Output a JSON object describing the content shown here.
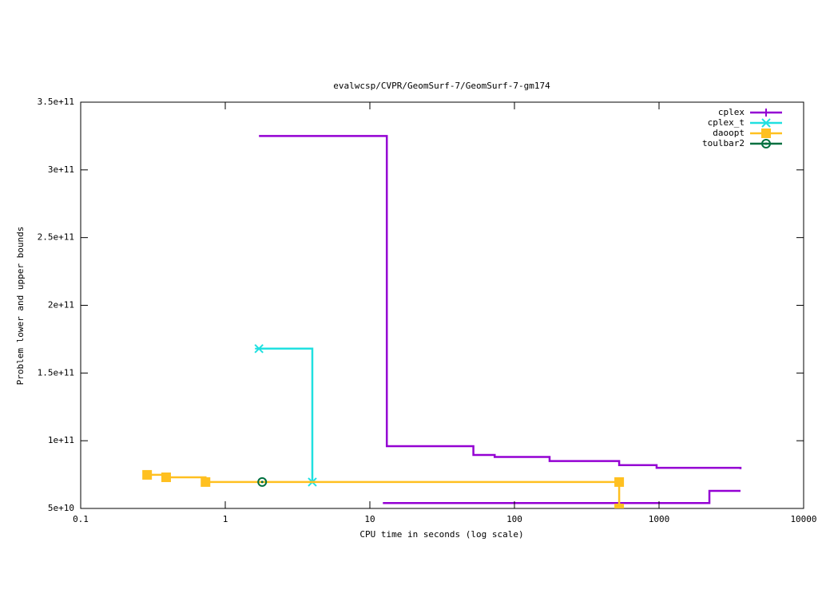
{
  "chart_data": {
    "type": "step",
    "title": "evalwcsp/CVPR/GeomSurf-7/GeomSurf-7-gm174",
    "x_label": "CPU time in seconds (log scale)",
    "y_label": "Problem lower and upper bounds",
    "xscale": "log",
    "xlim": [
      0.1,
      10000
    ],
    "xticks": [
      0.1,
      1,
      10,
      100,
      1000,
      10000
    ],
    "ylim": [
      50000000000,
      350000000000
    ],
    "yticks": [
      {
        "value": 50000000000,
        "label": "5e+10"
      },
      {
        "value": 100000000000,
        "label": "1e+11"
      },
      {
        "value": 150000000000,
        "label": "1.5e+11"
      },
      {
        "value": 200000000000,
        "label": "2e+11"
      },
      {
        "value": 250000000000,
        "label": "2.5e+11"
      },
      {
        "value": 300000000000,
        "label": "3e+11"
      },
      {
        "value": 350000000000,
        "label": "3.5e+11"
      }
    ],
    "legend": "top right",
    "series": [
      {
        "name": "cplex",
        "color": "#9400d3",
        "marker": "plus",
        "x": [
          1.71,
          13.1,
          52,
          73,
          175,
          530,
          962,
          3660,
          null,
          12.3,
          2230,
          3660
        ],
        "values": [
          325000000000,
          96000000000,
          89500000000,
          88000000000,
          85000000000,
          82000000000,
          80000000000,
          79000000000,
          null,
          54000000000,
          63000000000,
          63000000000
        ]
      },
      {
        "name": "cplex_t",
        "color": "#20e0e0",
        "marker": "star",
        "x": [
          1.71,
          4.0
        ],
        "values": [
          168000000000,
          69500000000
        ]
      },
      {
        "name": "daoopt",
        "color": "#ffc020",
        "marker": "square",
        "x": [
          0.288,
          0.39,
          0.73,
          530,
          530
        ],
        "values": [
          74800000000,
          73000000000,
          69500000000,
          69500000000,
          50000000000
        ]
      },
      {
        "name": "toulbar2",
        "color": "#007040",
        "marker": "circle",
        "x": [
          1.8
        ],
        "values": [
          69500000000
        ]
      }
    ]
  }
}
